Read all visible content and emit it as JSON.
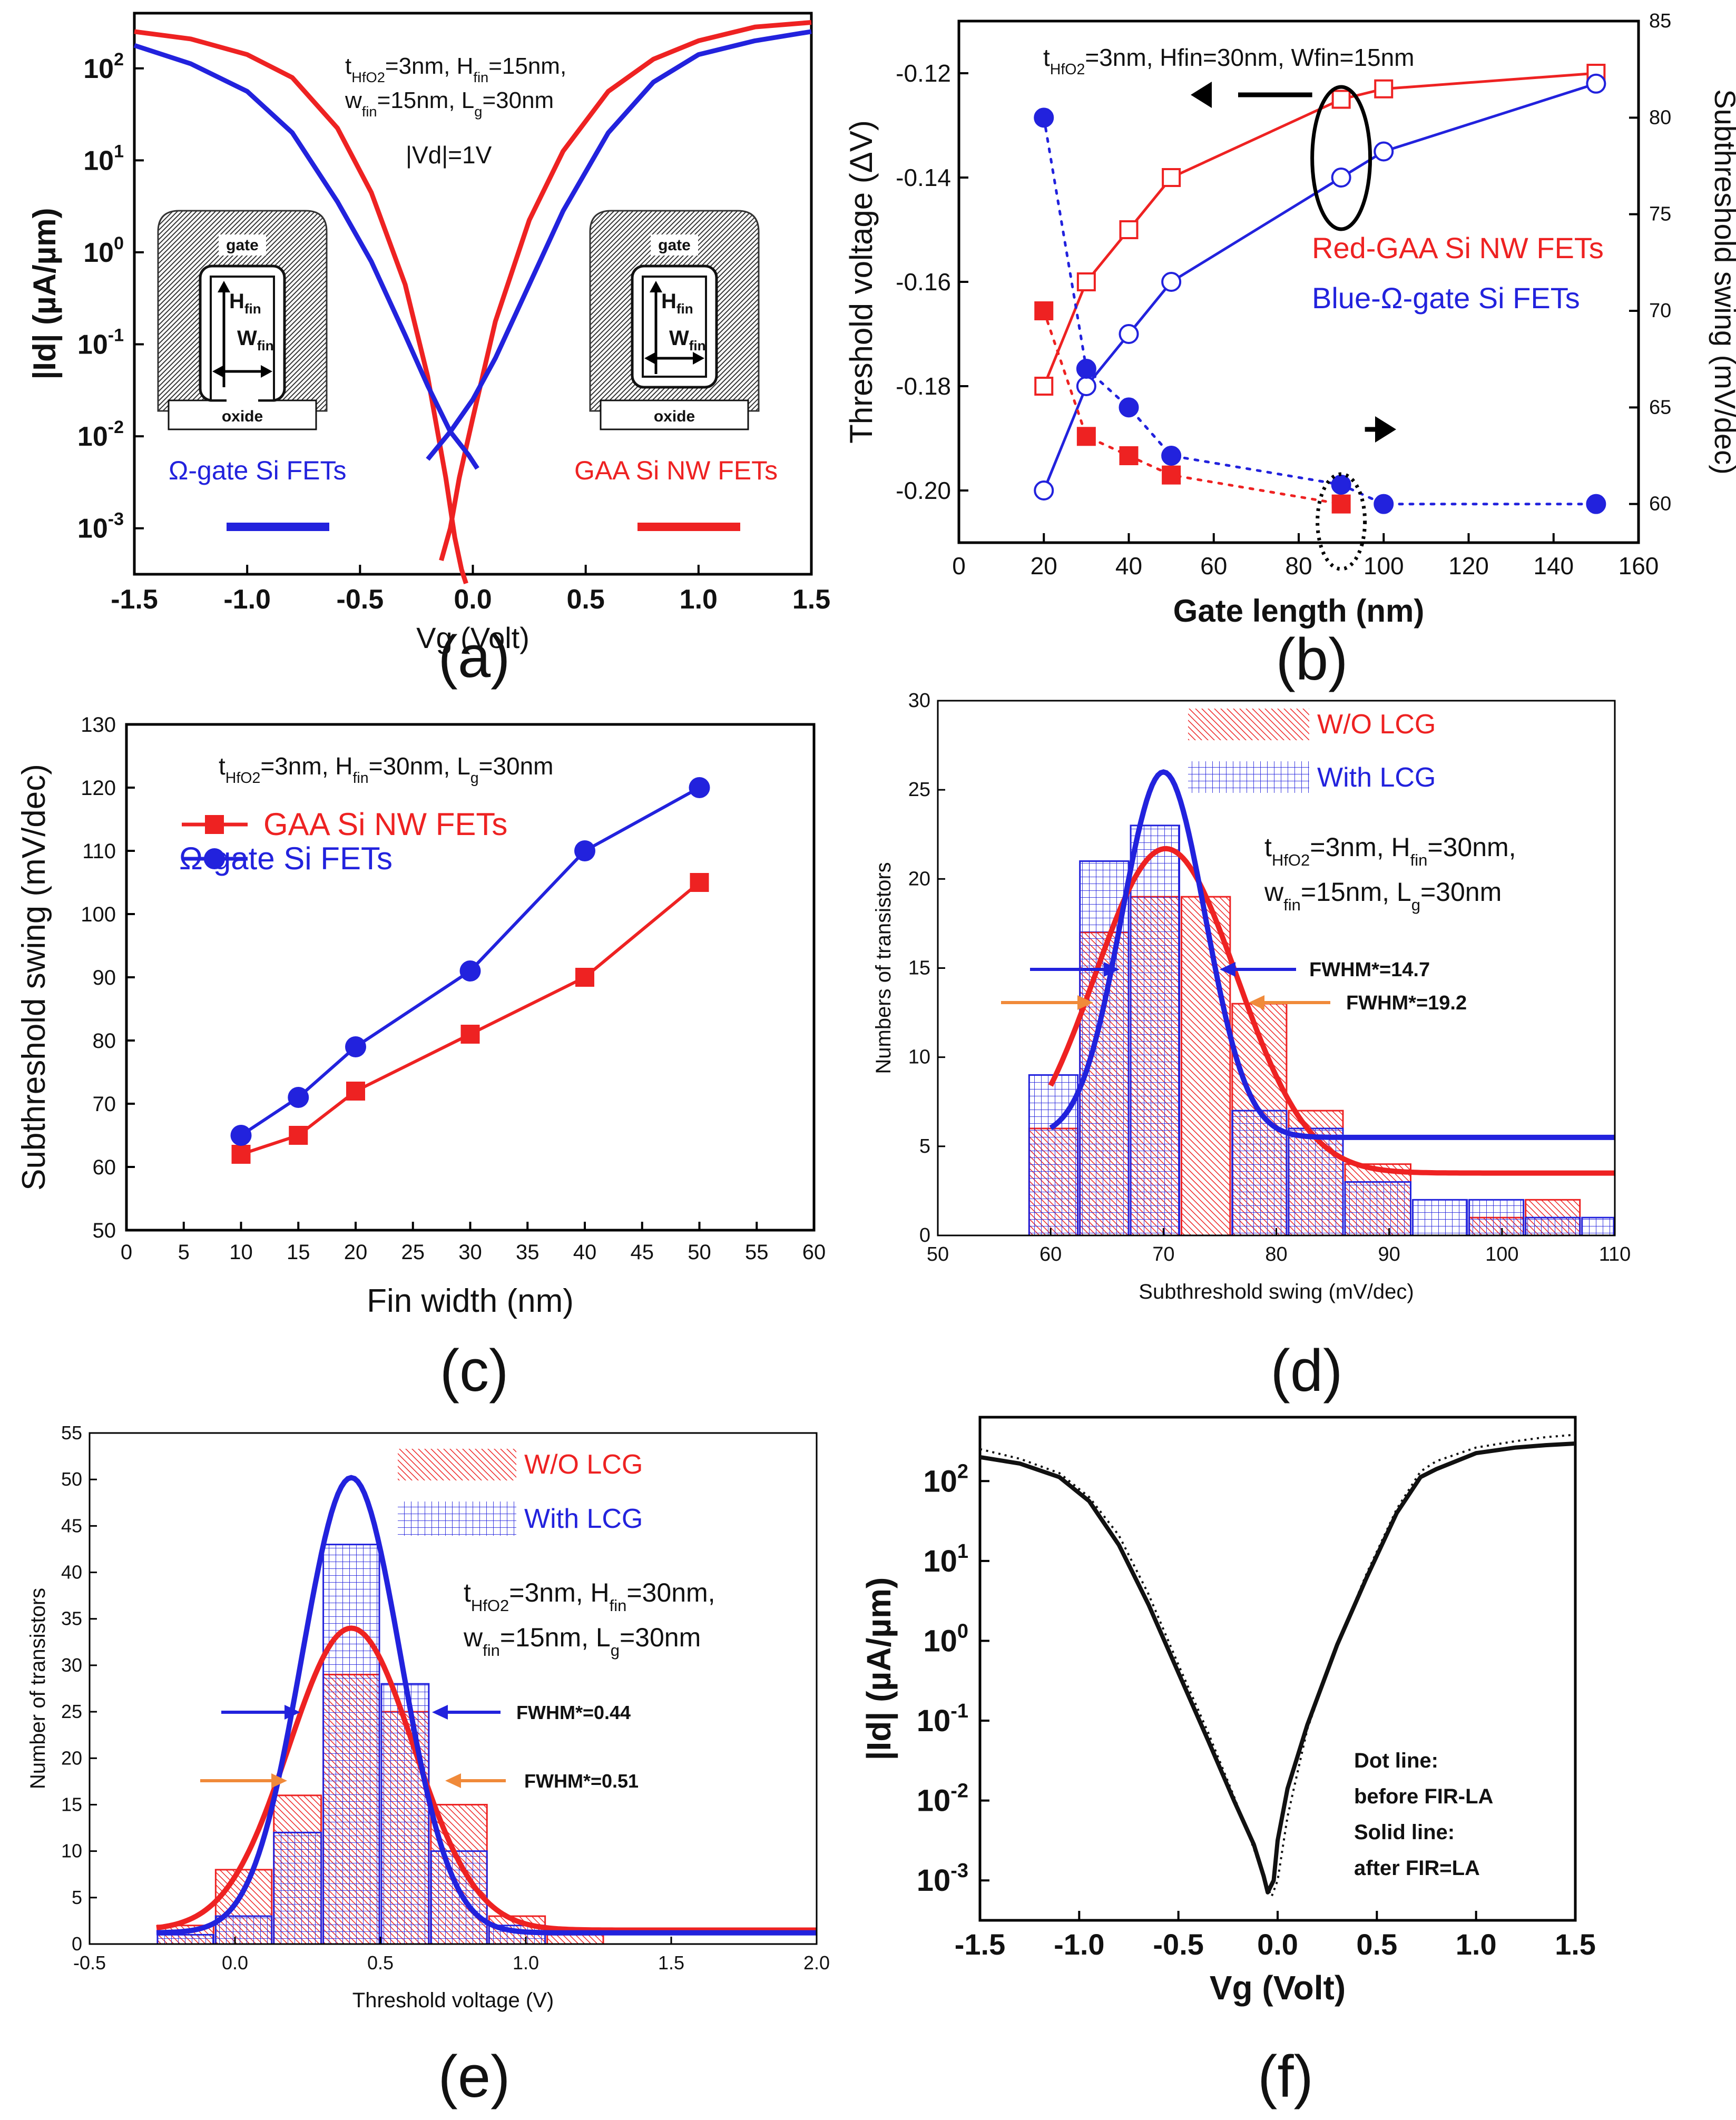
{
  "colors": {
    "red": "#ee2222",
    "blue": "#2222dd",
    "orange": "#f08a3a",
    "black": "#111111"
  },
  "chart_data": [
    {
      "panel": "a",
      "type": "line",
      "caption": "(a)",
      "xlabel": "Vg (Volt)",
      "ylabel": "|Id| (µA/µm)",
      "yscale": "log",
      "xlim": [
        -1.5,
        1.5
      ],
      "ylim_exp": [
        -3.5,
        2.6
      ],
      "xticks": [
        "-1.5",
        "-1.0",
        "-0.5",
        "0.0",
        "0.5",
        "1.0",
        "1.5"
      ],
      "yticks": [
        {
          "base": "10",
          "exp": "2",
          "value": 2
        },
        {
          "base": "10",
          "exp": "1",
          "value": 1
        },
        {
          "base": "10",
          "exp": "0",
          "value": 0
        },
        {
          "base": "10",
          "exp": "-1",
          "value": -1
        },
        {
          "base": "10",
          "exp": "-2",
          "value": -2
        },
        {
          "base": "10",
          "exp": "-3",
          "value": -3
        }
      ],
      "annotation_line1": [
        "t",
        "HfO2",
        "=3nm, H",
        "fin",
        "=15nm,"
      ],
      "annotation_line2": [
        "w",
        "fin",
        "=15nm, L",
        "g",
        "=30nm"
      ],
      "vd_label": "|Vd|=1V",
      "legend": [
        {
          "name": "Ω-gate Si FETs",
          "color": "#2222dd"
        },
        {
          "name": "GAA Si NW FETs",
          "color": "#ee2222"
        }
      ],
      "inset": {
        "gate": "gate",
        "oxide": "oxide",
        "h": "H",
        "h_sub": "fin",
        "w": "W",
        "w_sub": "fin"
      },
      "series": [
        {
          "name": "GAA Si NW FETs",
          "color": "#ee2222",
          "x": [
            -1.5,
            -1.25,
            -1.0,
            -0.8,
            -0.6,
            -0.45,
            -0.3,
            -0.2,
            -0.12,
            -0.08,
            -0.05,
            -0.03
          ],
          "y": [
            2.4,
            2.32,
            2.15,
            1.9,
            1.35,
            0.65,
            -0.35,
            -1.35,
            -2.45,
            -3.1,
            -3.45,
            -3.6
          ]
        },
        {
          "name": "GAA Si NW FETs (rising)",
          "color": "#ee2222",
          "x": [
            -0.14,
            -0.1,
            -0.06,
            0.0,
            0.1,
            0.25,
            0.4,
            0.6,
            0.8,
            1.0,
            1.25,
            1.5
          ],
          "y": [
            -3.35,
            -3.0,
            -2.45,
            -1.8,
            -0.75,
            0.35,
            1.1,
            1.75,
            2.1,
            2.3,
            2.45,
            2.5
          ]
        },
        {
          "name": "Ω-gate Si FETs",
          "color": "#2222dd",
          "x": [
            -1.5,
            -1.25,
            -1.0,
            -0.8,
            -0.6,
            -0.45,
            -0.3,
            -0.2,
            -0.1,
            -0.02,
            0.02
          ],
          "y": [
            2.25,
            2.05,
            1.75,
            1.3,
            0.55,
            -0.1,
            -0.9,
            -1.45,
            -1.95,
            -2.2,
            -2.35
          ]
        },
        {
          "name": "Ω-gate Si FETs (rising)",
          "color": "#2222dd",
          "x": [
            -0.2,
            -0.1,
            0.0,
            0.1,
            0.25,
            0.4,
            0.6,
            0.8,
            1.0,
            1.25,
            1.5
          ],
          "y": [
            -2.25,
            -1.95,
            -1.6,
            -1.15,
            -0.35,
            0.45,
            1.3,
            1.85,
            2.15,
            2.3,
            2.4
          ]
        }
      ]
    },
    {
      "panel": "b",
      "type": "line",
      "caption": "(b)",
      "xlabel": "Gate length (nm)",
      "ylabel_left": "Threshold voltage (ΔV)",
      "ylabel_right": "Subthreshold swing (mV/dec)",
      "xlim": [
        0,
        160
      ],
      "ylim_left": [
        -0.21,
        -0.11
      ],
      "ylim_right": [
        58,
        85
      ],
      "xticks": [
        "0",
        "20",
        "40",
        "60",
        "80",
        "100",
        "120",
        "140",
        "160"
      ],
      "yticks_left": [
        "-0.12",
        "-0.14",
        "-0.16",
        "-0.18",
        "-0.20"
      ],
      "yticks_right": [
        "85",
        "80",
        "75",
        "70",
        "65",
        "60"
      ],
      "annotation": "t_HfO2=3nm, Hfin=30nm, Wfin=15nm",
      "annotation_parts": [
        "t",
        "HfO2",
        "=3nm, Hfin=30nm, Wfin=15nm"
      ],
      "legend": [
        {
          "name": "Red-GAA Si NW FETs",
          "color": "#ee2222"
        },
        {
          "name": "Blue-Ω-gate Si FETs",
          "color": "#2222dd"
        }
      ],
      "series": [
        {
          "name": "GAA Vth",
          "color": "#ee2222",
          "axis": "left",
          "marker": "open-square",
          "x": [
            20,
            30,
            40,
            50,
            90,
            100,
            150
          ],
          "y": [
            -0.18,
            -0.16,
            -0.15,
            -0.14,
            -0.125,
            -0.123,
            -0.12
          ]
        },
        {
          "name": "Ω Vth",
          "color": "#2222dd",
          "axis": "left",
          "marker": "open-circle",
          "x": [
            20,
            30,
            40,
            50,
            90,
            100,
            150
          ],
          "y": [
            -0.2,
            -0.18,
            -0.17,
            -0.16,
            -0.14,
            -0.135,
            -0.122
          ]
        },
        {
          "name": "GAA SS",
          "color": "#ee2222",
          "axis": "right",
          "marker": "filled-square",
          "x": [
            20,
            30,
            40,
            50,
            90
          ],
          "y": [
            70,
            63.5,
            62.5,
            61.5,
            60
          ]
        },
        {
          "name": "Ω SS",
          "color": "#2222dd",
          "axis": "right",
          "marker": "filled-circle",
          "x": [
            20,
            30,
            40,
            50,
            90,
            100,
            150
          ],
          "y": [
            80,
            67,
            65,
            62.5,
            61,
            60,
            60
          ]
        }
      ]
    },
    {
      "panel": "c",
      "type": "line",
      "caption": "(c)",
      "xlabel": "Fin width (nm)",
      "ylabel": "Subthreshold swing (mV/dec)",
      "xlim": [
        0,
        60
      ],
      "ylim": [
        50,
        130
      ],
      "xticks": [
        "0",
        "5",
        "10",
        "15",
        "20",
        "25",
        "30",
        "35",
        "40",
        "45",
        "50",
        "55",
        "60"
      ],
      "yticks": [
        "50",
        "60",
        "70",
        "80",
        "90",
        "100",
        "110",
        "120",
        "130"
      ],
      "annotation_parts": [
        "t",
        "HfO2",
        "=3nm, H",
        "fin",
        "=30nm, L",
        "g",
        "=30nm"
      ],
      "series": [
        {
          "name": "GAA Si NW FETs",
          "color": "#ee2222",
          "marker": "square",
          "x": [
            10,
            15,
            20,
            30,
            40,
            50
          ],
          "y": [
            62,
            65,
            72,
            81,
            90,
            105
          ]
        },
        {
          "name": "Ω-gate Si FETs",
          "color": "#2222dd",
          "marker": "circle",
          "x": [
            10,
            15,
            20,
            30,
            40,
            50
          ],
          "y": [
            65,
            71,
            79,
            91,
            110,
            120
          ]
        }
      ]
    },
    {
      "panel": "d",
      "type": "bar",
      "caption": "(d)",
      "xlabel": "Subthreshold swing (mV/dec)",
      "ylabel": "Numbers of transistors",
      "xlim": [
        50,
        110
      ],
      "ylim": [
        0,
        30
      ],
      "xticks": [
        "50",
        "60",
        "70",
        "80",
        "90",
        "100",
        "110"
      ],
      "yticks": [
        "0",
        "5",
        "10",
        "15",
        "20",
        "25",
        "30"
      ],
      "bin_edges": [
        58,
        62.5,
        67,
        71.5,
        76,
        81,
        86,
        92,
        97,
        102,
        107,
        110
      ],
      "series": [
        {
          "name": "W/O LCG",
          "color": "#ee2222",
          "values": [
            6,
            17,
            19,
            19,
            13,
            7,
            4,
            0,
            1,
            2,
            0
          ]
        },
        {
          "name": "With LCG",
          "color": "#2222dd",
          "values": [
            9,
            21,
            23,
            0,
            7,
            6,
            3,
            2,
            2,
            1,
            1
          ]
        }
      ],
      "fits": [
        {
          "name": "W/O LCG fit",
          "color": "#ee2222",
          "mu": 70.2,
          "sigma": 6.3,
          "amp": 18.2,
          "base": 3.5,
          "x0": 60,
          "x1": 110
        },
        {
          "name": "With LCG fit",
          "color": "#2222dd",
          "mu": 70.0,
          "sigma": 3.7,
          "amp": 20.5,
          "base": 5.5,
          "x0": 60,
          "x1": 110
        }
      ],
      "annotation_line1": [
        "t",
        "HfO2",
        "=3nm, H",
        "fin",
        "=30nm,"
      ],
      "annotation_line2": [
        "w",
        "fin",
        "=15nm, L",
        "g",
        "=30nm"
      ],
      "fwhm_labels": [
        "FWHM*=14.7",
        "FWHM*=19.2"
      ],
      "legend": [
        {
          "name": "W/O LCG",
          "color": "#ee2222"
        },
        {
          "name": "With LCG",
          "color": "#2222dd"
        }
      ]
    },
    {
      "panel": "e",
      "type": "bar",
      "caption": "(e)",
      "xlabel": "Threshold voltage (V)",
      "ylabel": "Number of transistors",
      "xlim": [
        -0.5,
        2.0
      ],
      "ylim": [
        0,
        55
      ],
      "xticks": [
        "-0.5",
        "0.0",
        "0.5",
        "1.0",
        "1.5",
        "2.0"
      ],
      "yticks": [
        "0",
        "5",
        "10",
        "15",
        "20",
        "25",
        "30",
        "35",
        "40",
        "45",
        "50",
        "55"
      ],
      "bin_edges": [
        -0.27,
        -0.07,
        0.13,
        0.3,
        0.5,
        0.67,
        0.87,
        1.07,
        1.27
      ],
      "series": [
        {
          "name": "W/O LCG",
          "color": "#ee2222",
          "values": [
            2,
            8,
            16,
            29,
            25,
            15,
            3,
            1
          ]
        },
        {
          "name": "With LCG",
          "color": "#2222dd",
          "values": [
            1,
            3,
            12,
            43,
            28,
            10,
            2,
            0
          ]
        }
      ],
      "fits": [
        {
          "name": "W/O LCG fit",
          "color": "#ee2222",
          "mu": 0.4,
          "sigma": 0.215,
          "amp": 32.5,
          "base": 1.5,
          "x0": -0.27,
          "x1": 2.0
        },
        {
          "name": "With LCG fit",
          "color": "#2222dd",
          "mu": 0.4,
          "sigma": 0.17,
          "amp": 49,
          "base": 1.2,
          "x0": -0.27,
          "x1": 2.0
        }
      ],
      "annotation_line1": [
        "t",
        "HfO2",
        "=3nm, H",
        "fin",
        "=30nm,"
      ],
      "annotation_line2": [
        "w",
        "fin",
        "=15nm, L",
        "g",
        "=30nm"
      ],
      "fwhm_labels": [
        "FWHM*=0.44",
        "FWHM*=0.51"
      ],
      "legend": [
        {
          "name": "W/O LCG",
          "color": "#ee2222"
        },
        {
          "name": "With LCG",
          "color": "#2222dd"
        }
      ]
    },
    {
      "panel": "f",
      "type": "line",
      "caption": "(f)",
      "xlabel": "Vg (Volt)",
      "ylabel": "|Id| (µA/µm)",
      "yscale": "log",
      "xlim": [
        -1.5,
        1.5
      ],
      "ylim_exp": [
        -3.5,
        2.8
      ],
      "xticks": [
        "-1.5",
        "-1.0",
        "-0.5",
        "0.0",
        "0.5",
        "1.0",
        "1.5"
      ],
      "yticks": [
        {
          "base": "10",
          "exp": "2",
          "value": 2
        },
        {
          "base": "10",
          "exp": "1",
          "value": 1
        },
        {
          "base": "10",
          "exp": "0",
          "value": 0
        },
        {
          "base": "10",
          "exp": "-1",
          "value": -1
        },
        {
          "base": "10",
          "exp": "-2",
          "value": -2
        },
        {
          "base": "10",
          "exp": "-3",
          "value": -3
        }
      ],
      "note": [
        "Dot line:",
        "before FIR-LA",
        "Solid line:",
        "after FIR=LA"
      ],
      "series": [
        {
          "name": "after FIR-LA",
          "style": "solid",
          "color": "#111111",
          "x": [
            -1.5,
            -1.3,
            -1.1,
            -0.95,
            -0.8,
            -0.65,
            -0.5,
            -0.35,
            -0.22,
            -0.12,
            -0.07,
            -0.05,
            -0.02,
            0.0,
            0.05,
            0.15,
            0.3,
            0.45,
            0.6,
            0.72,
            0.8,
            1.0,
            1.2,
            1.35,
            1.5
          ],
          "y": [
            2.3,
            2.22,
            2.05,
            1.75,
            1.2,
            0.45,
            -0.4,
            -1.25,
            -2.0,
            -2.55,
            -2.95,
            -3.15,
            -3.0,
            -2.5,
            -1.85,
            -1.05,
            -0.05,
            0.8,
            1.6,
            2.05,
            2.15,
            2.35,
            2.42,
            2.45,
            2.47
          ]
        },
        {
          "name": "before FIR-LA",
          "style": "dotted",
          "color": "#111111",
          "x": [
            -1.5,
            -1.3,
            -1.1,
            -0.95,
            -0.8,
            -0.65,
            -0.5,
            -0.35,
            -0.22,
            -0.12,
            -0.06,
            -0.03,
            0.0,
            0.05,
            0.15,
            0.3,
            0.45,
            0.6,
            0.72,
            0.8,
            1.0,
            1.2,
            1.35,
            1.5
          ],
          "y": [
            2.4,
            2.28,
            2.1,
            1.8,
            1.32,
            0.58,
            -0.3,
            -1.15,
            -1.95,
            -2.6,
            -3.05,
            -3.2,
            -3.0,
            -2.2,
            -1.1,
            -0.05,
            0.85,
            1.65,
            2.12,
            2.25,
            2.42,
            2.5,
            2.55,
            2.58
          ]
        }
      ]
    }
  ]
}
